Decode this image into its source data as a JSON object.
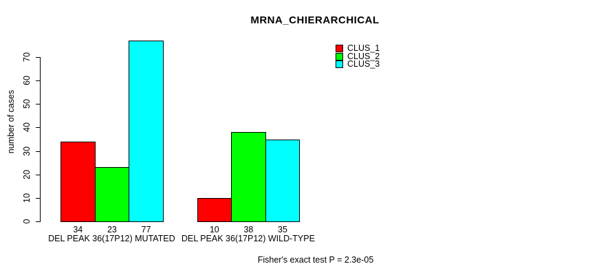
{
  "title": "MRNA_CHIERARCHICAL",
  "annotation": "Fisher's exact test P = 2.3e-05",
  "chart_data": {
    "type": "bar",
    "title": "MRNA_CHIERARCHICAL",
    "ylabel": "number of cases",
    "xlabel": "",
    "categories": [
      "DEL PEAK 36(17P12) MUTATED",
      "DEL PEAK 36(17P12) WILD-TYPE"
    ],
    "series": [
      {
        "name": "CLUS_1",
        "color": "#ff0000",
        "values": [
          34,
          10
        ]
      },
      {
        "name": "CLUS_2",
        "color": "#00ff00",
        "values": [
          23,
          38
        ]
      },
      {
        "name": "CLUS_3",
        "color": "#00ffff",
        "values": [
          77,
          35
        ]
      }
    ],
    "bar_value_labels": [
      [
        34,
        23,
        77
      ],
      [
        10,
        38,
        35
      ]
    ],
    "yticks": [
      0,
      10,
      20,
      30,
      40,
      50,
      60,
      70
    ],
    "ylim": [
      0,
      77
    ],
    "grid": false,
    "legend_position": "top-right",
    "background_color": "#ffffff",
    "axis_color": "#000000"
  }
}
